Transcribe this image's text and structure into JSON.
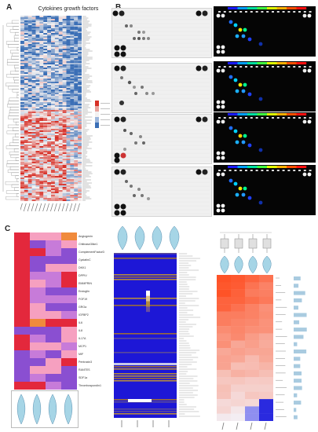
{
  "figure": {
    "panel_a": {
      "letter": "A",
      "title": "Cytokines growth factors"
    },
    "panel_b": {
      "letter": "B"
    },
    "panel_c": {
      "letter": "C",
      "heatmap_labels": [
        "Angiogenin",
        "Chitinase3like1",
        "ComplementFactorD",
        "CystatinC",
        "DKK1",
        "DPPIV",
        "EMMPRIN",
        "Endoglin",
        "FGF19",
        "GROa",
        "IGFBP2",
        "IL6",
        "IL8",
        "IL17A",
        "MCP1",
        "MIF",
        "Pentraxin3",
        "RANTES",
        "SDF1a",
        "Thrombospondin1"
      ]
    }
  },
  "colors": {
    "heat_low": "#3b6fb6",
    "heat_mid": "#f3f1f1",
    "heat_high": "#d73027",
    "violin": "#a6d5e6",
    "blot_dark_bg": "#050505",
    "blot_gray_bg": "#f0f0f0",
    "c2_background": "#1d17d6",
    "c3_high": "#ff4a1c"
  }
}
